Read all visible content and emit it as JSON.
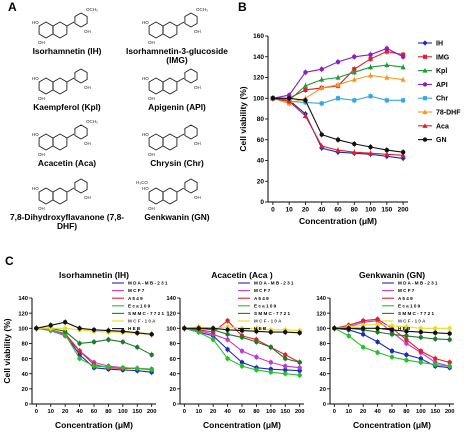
{
  "panels": {
    "a": "A",
    "b": "B",
    "c": "C"
  },
  "structures": [
    {
      "name": "Isorhamnetin (IH)",
      "label": "OCH₃",
      "pos": "c1"
    },
    {
      "name": "Isorhamnetin-3-glucoside (IMG)",
      "label": "OCH₃",
      "pos": "c2"
    },
    {
      "name": "Kaempferol (Kpl)",
      "label": "",
      "pos": "c3"
    },
    {
      "name": "Apigenin (API)",
      "label": "",
      "pos": "c4"
    },
    {
      "name": "Acacetin (Aca)",
      "label": "OCH₃",
      "pos": "c5"
    },
    {
      "name": "Chrysin (Chr)",
      "label": "",
      "pos": "c6"
    },
    {
      "name": "7,8-Dihydroxyflavanone (7,8-DHF)",
      "label": "",
      "pos": "c7"
    },
    {
      "name": "Genkwanin (GN)",
      "label": "H₃CO",
      "pos": "c8"
    }
  ],
  "chart_data": [
    {
      "type": "line",
      "id": "B",
      "ylabel": "Cell viability (%)",
      "xlabel": "Concentration (μM)",
      "categories": [
        "0",
        "10",
        "20",
        "40",
        "60",
        "80",
        "100",
        "150",
        "200"
      ],
      "ylim": [
        0,
        160
      ],
      "yticks": [
        0,
        20,
        40,
        60,
        80,
        100,
        120,
        140,
        160
      ],
      "legend_position": "right",
      "series": [
        {
          "name": "IH",
          "color": "#1f2ab8",
          "marker": "diamond",
          "values": [
            100,
            98,
            85,
            52,
            48,
            47,
            46,
            44,
            42
          ]
        },
        {
          "name": "IMG",
          "color": "#e0202a",
          "marker": "square",
          "values": [
            100,
            100,
            108,
            110,
            112,
            128,
            138,
            145,
            142
          ]
        },
        {
          "name": "Kpl",
          "color": "#1f9a3a",
          "marker": "triangle",
          "values": [
            100,
            98,
            112,
            118,
            120,
            125,
            130,
            132,
            130
          ]
        },
        {
          "name": "API",
          "color": "#8a1fc0",
          "marker": "circle",
          "values": [
            100,
            103,
            125,
            128,
            135,
            140,
            142,
            148,
            140
          ]
        },
        {
          "name": "Chr",
          "color": "#3aa8e0",
          "marker": "square",
          "values": [
            100,
            97,
            96,
            95,
            100,
            98,
            102,
            98,
            98
          ]
        },
        {
          "name": "78-DHF",
          "color": "#f29a1f",
          "marker": "triangle",
          "values": [
            100,
            95,
            100,
            110,
            113,
            118,
            122,
            120,
            118
          ]
        },
        {
          "name": "Aca",
          "color": "#e0202a",
          "marker": "triangle",
          "values": [
            100,
            97,
            83,
            54,
            50,
            48,
            47,
            46,
            45
          ]
        },
        {
          "name": "GN",
          "color": "#111111",
          "marker": "circle",
          "values": [
            100,
            100,
            98,
            65,
            60,
            56,
            53,
            50,
            48
          ]
        }
      ]
    },
    {
      "type": "line",
      "id": "C1",
      "title": "Isorhamnetin (IH)",
      "ylabel": "Cell viability (%)",
      "xlabel": "Concentration (μM)",
      "categories": [
        "0",
        "10",
        "20",
        "40",
        "60",
        "80",
        "100",
        "150",
        "200"
      ],
      "ylim": [
        0,
        140
      ],
      "yticks": [
        0,
        20,
        40,
        60,
        80,
        100,
        120,
        140
      ],
      "series": [
        {
          "name": "M D A - M B - 2 3 1",
          "color": "#1f2ab8",
          "values": [
            100,
            98,
            92,
            65,
            48,
            46,
            45,
            44,
            42
          ]
        },
        {
          "name": "M C F 7",
          "color": "#c03ad8",
          "values": [
            100,
            97,
            90,
            70,
            55,
            50,
            48,
            47,
            45
          ]
        },
        {
          "name": "A 5 4 9",
          "color": "#e0202a",
          "values": [
            100,
            98,
            93,
            70,
            52,
            48,
            47,
            47,
            46
          ]
        },
        {
          "name": "E c a 1 0 9",
          "color": "#28c028",
          "values": [
            100,
            98,
            92,
            60,
            50,
            49,
            48,
            47,
            46
          ]
        },
        {
          "name": "S M M C - 7 7 2 1",
          "color": "#1f7a2a",
          "values": [
            100,
            100,
            96,
            80,
            82,
            85,
            82,
            75,
            65
          ]
        },
        {
          "name": "M C F - 1 0 A",
          "color": "#e8e020",
          "values": [
            100,
            100,
            100,
            98,
            96,
            95,
            95,
            93,
            92
          ]
        },
        {
          "name": "H E B",
          "color": "#111111",
          "values": [
            100,
            104,
            108,
            100,
            98,
            97,
            96,
            94,
            92
          ]
        }
      ]
    },
    {
      "type": "line",
      "id": "C2",
      "title": "Acacetin (Aca )",
      "xlabel": "Concentration (μM)",
      "categories": [
        "0",
        "10",
        "20",
        "40",
        "60",
        "80",
        "100",
        "150",
        "200"
      ],
      "ylim": [
        0,
        140
      ],
      "yticks": [
        0,
        20,
        40,
        60,
        80,
        100,
        120,
        140
      ],
      "series": [
        {
          "name": "M D A - M B - 2 3 1",
          "color": "#1f2ab8",
          "values": [
            100,
            95,
            90,
            72,
            55,
            48,
            46,
            45,
            44
          ]
        },
        {
          "name": "M C F 7",
          "color": "#c03ad8",
          "values": [
            100,
            97,
            92,
            85,
            70,
            62,
            55,
            50,
            48
          ]
        },
        {
          "name": "A 5 4 9",
          "color": "#e0202a",
          "values": [
            100,
            98,
            95,
            110,
            90,
            85,
            75,
            65,
            55
          ]
        },
        {
          "name": "E c a 1 0 9",
          "color": "#28c028",
          "values": [
            100,
            95,
            85,
            60,
            50,
            45,
            42,
            40,
            38
          ]
        },
        {
          "name": "S M M C - 7 7 2 1",
          "color": "#1f7a2a",
          "values": [
            100,
            100,
            98,
            92,
            88,
            82,
            75,
            60,
            55
          ]
        },
        {
          "name": "M C F - 1 0 A",
          "color": "#e8e020",
          "values": [
            100,
            102,
            100,
            102,
            100,
            100,
            98,
            98,
            97
          ]
        },
        {
          "name": "H E B",
          "color": "#111111",
          "values": [
            100,
            100,
            100,
            98,
            97,
            96,
            95,
            95,
            94
          ]
        }
      ]
    },
    {
      "type": "line",
      "id": "C3",
      "title": "Genkwanin (GN)",
      "xlabel": "Concentration (μM)",
      "categories": [
        "0",
        "10",
        "20",
        "40",
        "60",
        "80",
        "100",
        "150",
        "200"
      ],
      "ylim": [
        0,
        140
      ],
      "yticks": [
        0,
        20,
        40,
        60,
        80,
        100,
        120,
        140
      ],
      "series": [
        {
          "name": "M D A - M B - 2 3 1",
          "color": "#1f2ab8",
          "values": [
            100,
            98,
            92,
            82,
            70,
            65,
            60,
            50,
            48
          ]
        },
        {
          "name": "M C F 7",
          "color": "#c03ad8",
          "values": [
            100,
            102,
            108,
            110,
            95,
            80,
            68,
            55,
            50
          ]
        },
        {
          "name": "A 5 4 9",
          "color": "#e0202a",
          "values": [
            100,
            104,
            110,
            112,
            100,
            85,
            70,
            60,
            55
          ]
        },
        {
          "name": "E c a 1 0 9",
          "color": "#28c028",
          "values": [
            100,
            90,
            75,
            68,
            62,
            58,
            55,
            52,
            50
          ]
        },
        {
          "name": "S M M C - 7 7 2 1",
          "color": "#1f7a2a",
          "values": [
            100,
            100,
            98,
            95,
            92,
            90,
            88,
            86,
            85
          ]
        },
        {
          "name": "M C F - 1 0 A",
          "color": "#e8e020",
          "values": [
            100,
            102,
            104,
            105,
            103,
            102,
            100,
            100,
            100
          ]
        },
        {
          "name": "H E B",
          "color": "#111111",
          "values": [
            100,
            100,
            100,
            100,
            98,
            96,
            95,
            94,
            93
          ]
        }
      ]
    }
  ]
}
